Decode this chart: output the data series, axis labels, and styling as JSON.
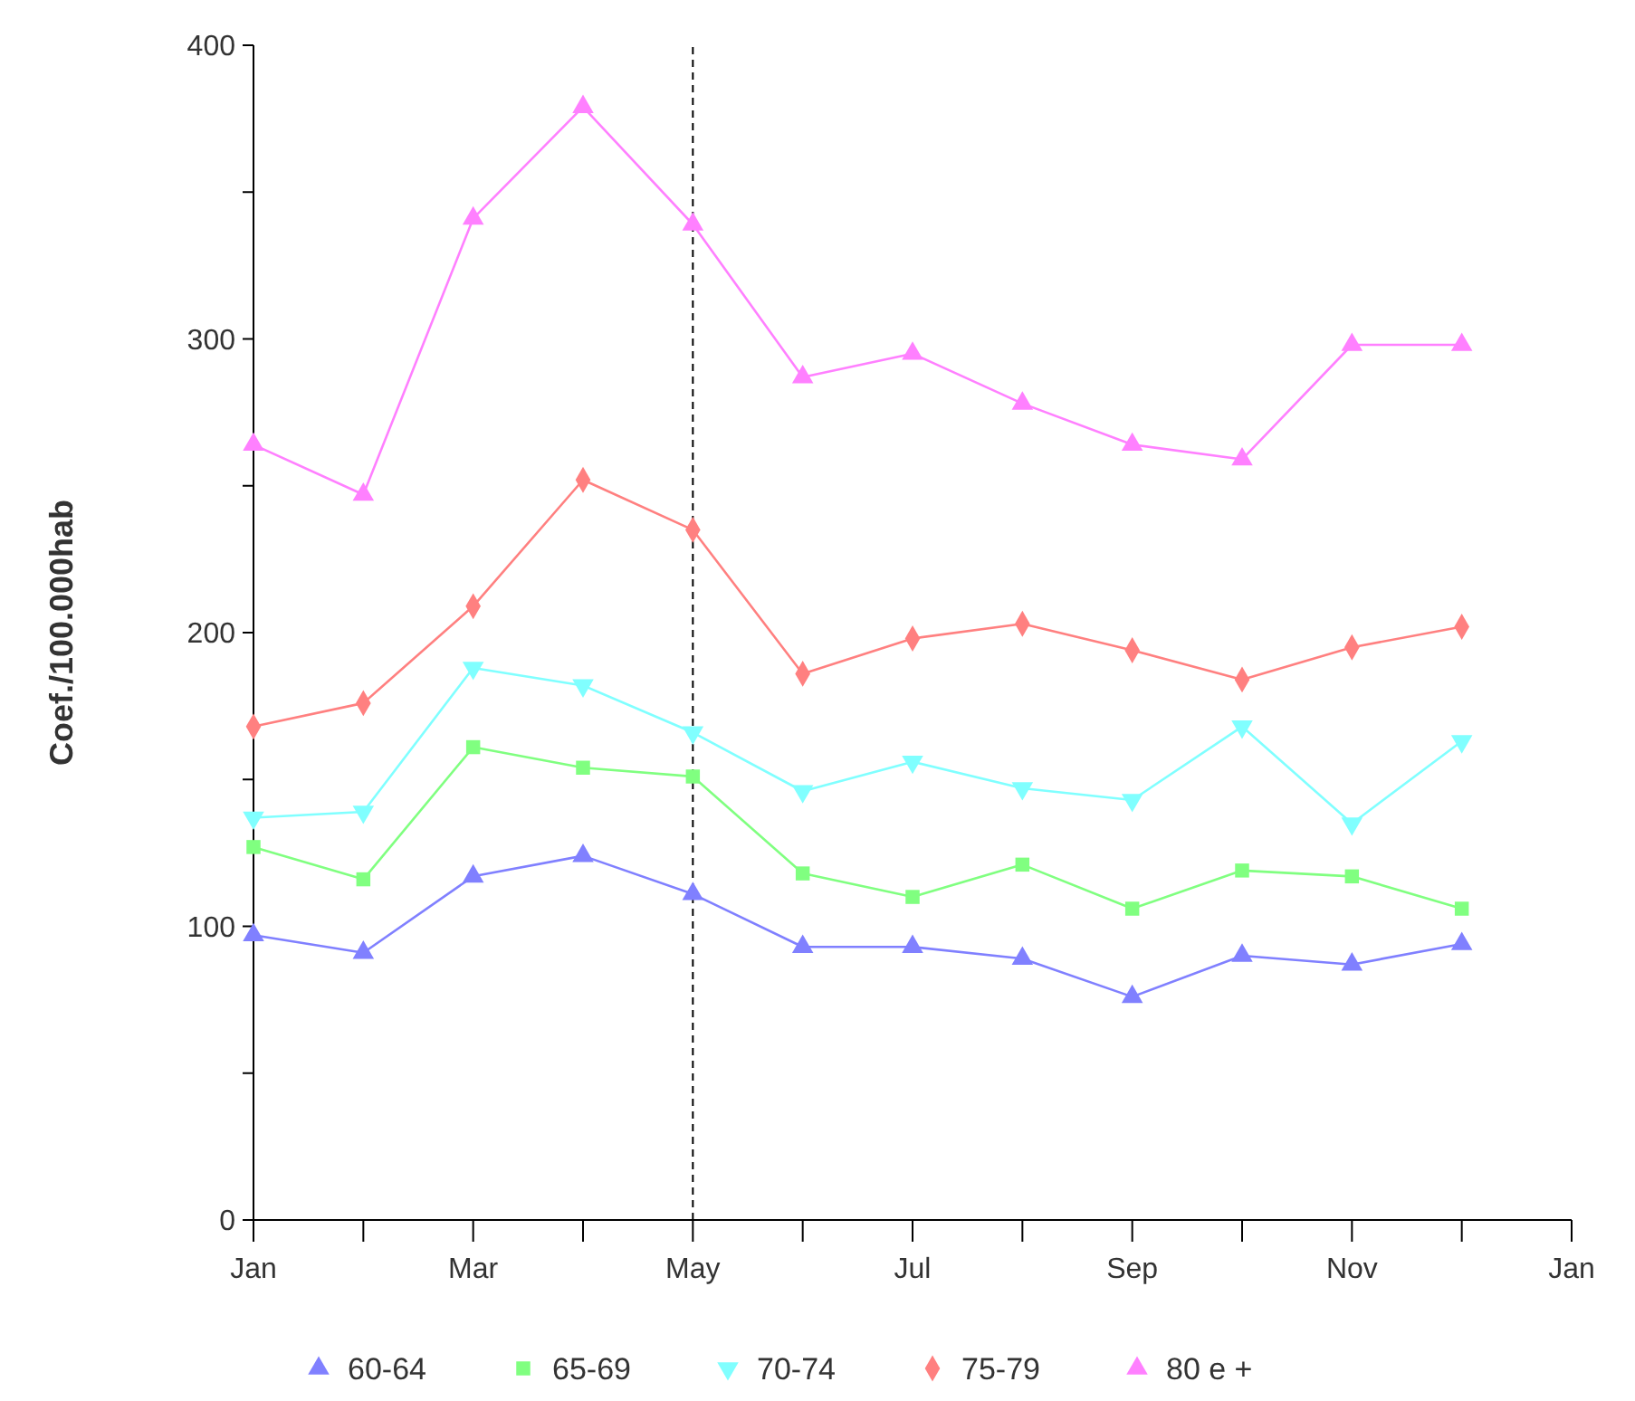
{
  "chart_data": {
    "type": "line",
    "ylabel": "Coef./100.000hab",
    "categories": [
      "Jan",
      null,
      "Mar",
      null,
      "May",
      null,
      "Jul",
      null,
      "Sep",
      null,
      "Nov",
      null,
      "Jan"
    ],
    "series": [
      {
        "name": "60-64",
        "color": "#8080ff",
        "marker": "triangle",
        "values": [
          97,
          91,
          117,
          124,
          111,
          93,
          93,
          89,
          76,
          90,
          87,
          94,
          null
        ]
      },
      {
        "name": "65-69",
        "color": "#80ff80",
        "marker": "square",
        "values": [
          127,
          116,
          161,
          154,
          151,
          118,
          110,
          121,
          106,
          119,
          117,
          106,
          null
        ]
      },
      {
        "name": "70-74",
        "color": "#80ffff",
        "marker": "triangle-down",
        "values": [
          137,
          139,
          188,
          182,
          166,
          146,
          156,
          147,
          143,
          168,
          135,
          163,
          null
        ]
      },
      {
        "name": "75-79",
        "color": "#ff8080",
        "marker": "diamond",
        "values": [
          168,
          176,
          209,
          252,
          235,
          186,
          198,
          203,
          194,
          184,
          195,
          202,
          null
        ]
      },
      {
        "name": "80 e +",
        "color": "#ff80ff",
        "marker": "triangle",
        "values": [
          264,
          247,
          341,
          379,
          339,
          287,
          295,
          278,
          264,
          259,
          298,
          298,
          null
        ]
      }
    ],
    "ylim": [
      0,
      400
    ],
    "yticks": [
      0,
      {
        "value": 50,
        "label": null
      },
      100,
      {
        "value": 150,
        "label": null
      },
      200,
      {
        "value": 250,
        "label": null
      },
      300,
      {
        "value": 350,
        "label": null
      },
      400
    ],
    "ref_lines": [
      {
        "axis": "x",
        "value": "May",
        "line_style": "dashed",
        "color": "#000000"
      }
    ],
    "grid": false,
    "legend": "bottom",
    "line_style": "solid"
  }
}
